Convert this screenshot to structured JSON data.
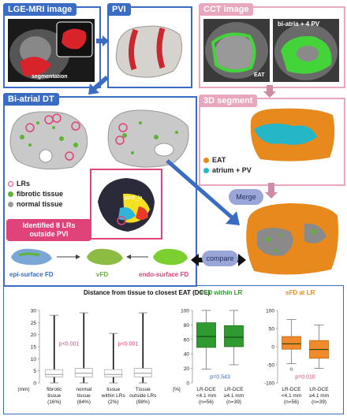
{
  "panels": {
    "lge_mri": {
      "title": "LGE-MRI image",
      "segmentation_label": "segmentation"
    },
    "pvi": {
      "title": "PVI"
    },
    "cct": {
      "title": "CCT image",
      "eat_label": "EAT",
      "biatria_label": "bi-atria + 4 PV"
    },
    "bi_atrial_dt": {
      "title": "Bi-atrial DT",
      "legend": [
        {
          "label": "LRs",
          "color": "#e0427a"
        },
        {
          "label": "fibrotic tissue",
          "color": "#5fb336"
        },
        {
          "label": "normal tissue",
          "color": "#9a9a9a"
        }
      ],
      "callout_line1": "Identified 8 LRs",
      "callout_line2": "outside PVI",
      "inset_label": "post_la",
      "fd_labels": {
        "epi": "epi-surface FD",
        "vfd": "vFD",
        "endo": "endo-surface FD"
      }
    },
    "segment_3d": {
      "title": "3D segment",
      "legend": [
        {
          "label": "EAT",
          "color": "#e68a1f"
        },
        {
          "label": "atrium + PV",
          "color": "#25b7c8"
        }
      ]
    },
    "merge_label": "Merge",
    "compare_label": "compare"
  },
  "colors": {
    "blue": "#3a6cc4",
    "pink": "#e8a7bd",
    "green": "#3a9a3a",
    "orange": "#f08a2a",
    "pvalue": "#e0427a"
  },
  "chart_data": [
    {
      "type": "box",
      "title": "Distance from tissue to closest EAT (DCE)",
      "ylabel": "(mm)",
      "ylim": [
        0,
        30
      ],
      "yticks": [
        0,
        5,
        10,
        15,
        20,
        25,
        30
      ],
      "categories": [
        "fibrotic tissue (16%)",
        "normal tissue (84%)",
        "tissue within LRs (2%)",
        "Tissue outside LRs (98%)"
      ],
      "category_lines": [
        [
          "fibrotic",
          "tissue",
          "(16%)"
        ],
        [
          "normal",
          "tissue",
          "(84%)"
        ],
        [
          "tissue",
          "within LRs",
          "(2%)"
        ],
        [
          "Tissue",
          "outside LRs",
          "(98%)"
        ]
      ],
      "boxes": [
        {
          "min": 0,
          "q1": 2.5,
          "median": 3.5,
          "q3": 5.5,
          "max": 28
        },
        {
          "min": 0,
          "q1": 2.5,
          "median": 4,
          "q3": 6,
          "max": 29
        },
        {
          "min": 0,
          "q1": 2.5,
          "median": 3.5,
          "q3": 5.5,
          "max": 20.5
        },
        {
          "min": 0,
          "q1": 2.5,
          "median": 4,
          "q3": 6,
          "max": 29
        }
      ],
      "pvalues": [
        "p<0.001",
        "p<0.001"
      ]
    },
    {
      "type": "box",
      "title": "vFD within LR",
      "ylabel": "[%]",
      "ylim": [
        0,
        100
      ],
      "yticks": [
        0,
        20,
        40,
        60,
        80,
        100
      ],
      "categories": [
        "LR-DCE <4.1 mm (n=56)",
        "LR-DCE ≥4.1 mm (n=39)"
      ],
      "category_lines": [
        [
          "LR-DCE",
          "<4.1 mm",
          "(n=56)"
        ],
        [
          "LR-DCE",
          "≥4.1 mm",
          "(n=39)"
        ]
      ],
      "boxes": [
        {
          "min": 19,
          "q1": 49,
          "median": 64,
          "q3": 83,
          "max": 100
        },
        {
          "min": 25,
          "q1": 50,
          "median": 63,
          "q3": 79,
          "max": 100
        }
      ],
      "pvalue": "p=0.543"
    },
    {
      "type": "box",
      "title": "sFD at LR",
      "ylabel": "",
      "ylim": [
        -100,
        100
      ],
      "yticks": [
        -100,
        -50,
        0,
        50,
        100
      ],
      "categories": [
        "LR-DCE <4.1 mm (n=56)",
        "LR-DCE ≥4.1 mm (n=39)"
      ],
      "category_lines": [
        [
          "LR-DCE",
          "<4.1 mm",
          "(n=56)"
        ],
        [
          "LR-DCE",
          "≥4.1 mm",
          "(n=39)"
        ]
      ],
      "boxes": [
        {
          "min": -47,
          "q1": -7,
          "median": 8,
          "q3": 28,
          "max": 75,
          "outliers": [
            -62
          ]
        },
        {
          "min": -60,
          "q1": -32,
          "median": -8,
          "q3": 17,
          "max": 60
        }
      ],
      "pvalue": "p=0.010"
    }
  ]
}
